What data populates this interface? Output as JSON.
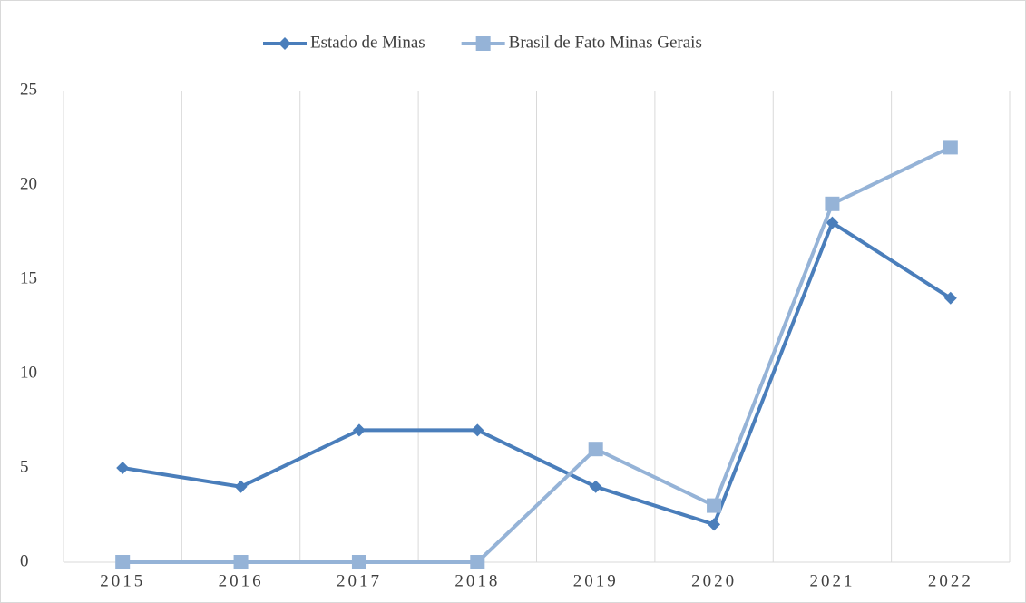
{
  "chart_data": {
    "type": "line",
    "categories": [
      "2015",
      "2016",
      "2017",
      "2018",
      "2019",
      "2020",
      "2021",
      "2022"
    ],
    "series": [
      {
        "name": "Estado de Minas",
        "color": "#4a7ebb",
        "marker": "diamond",
        "values": [
          5,
          4,
          7,
          7,
          4,
          2,
          18,
          14
        ]
      },
      {
        "name": "Brasil de Fato Minas Gerais",
        "color": "#95b3d7",
        "marker": "square",
        "values": [
          0,
          0,
          0,
          0,
          6,
          3,
          19,
          22
        ]
      }
    ],
    "ylim": [
      0,
      25
    ],
    "yticks": [
      0,
      5,
      10,
      15,
      20,
      25
    ],
    "grid": true,
    "legend": "top"
  }
}
